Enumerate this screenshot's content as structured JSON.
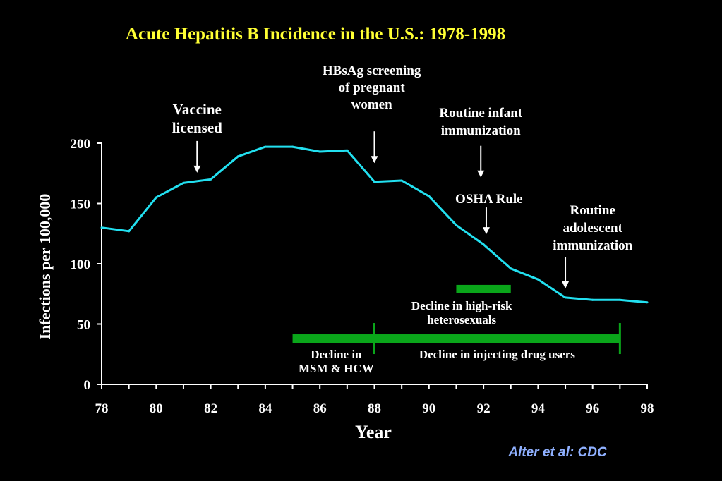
{
  "chart_data": {
    "type": "line",
    "title": "Acute Hepatitis B Incidence in the U.S.: 1978-1998",
    "xlabel": "Year",
    "ylabel": "Infections per 100,000",
    "xlim": [
      78,
      98
    ],
    "ylim": [
      0,
      200
    ],
    "x_ticks": [
      "78",
      "80",
      "82",
      "84",
      "86",
      "88",
      "90",
      "92",
      "94",
      "96",
      "98"
    ],
    "y_ticks": [
      "0",
      "50",
      "100",
      "150",
      "200"
    ],
    "grid": false,
    "legend": "none",
    "line_color": "#22e0f0",
    "series": [
      {
        "x": [
          78,
          79,
          80,
          81,
          82,
          83,
          84,
          85,
          86,
          87,
          88,
          89,
          90,
          91,
          92,
          93,
          94,
          95,
          96,
          97,
          98
        ],
        "values": [
          130,
          127,
          155,
          167,
          170,
          189,
          197,
          197,
          193,
          194,
          168,
          169,
          156,
          132,
          116,
          96,
          87,
          72,
          70,
          70,
          68
        ]
      }
    ],
    "annotations": [
      {
        "id": "vaccine",
        "lines": [
          "Vaccine",
          "licensed"
        ],
        "arrow_x": 81.5,
        "arrow_y": 172
      },
      {
        "id": "hbsag",
        "lines": [
          "HBsAg  screening",
          "of pregnant",
          "women"
        ],
        "arrow_x": 88,
        "arrow_y": 180
      },
      {
        "id": "infant",
        "lines": [
          "Routine infant",
          "immunization"
        ],
        "arrow_x": 91.9,
        "arrow_y": 168
      },
      {
        "id": "osha",
        "lines": [
          "OSHA Rule"
        ],
        "arrow_x": 92.1,
        "arrow_y": 121
      },
      {
        "id": "adolescent",
        "lines": [
          "Routine",
          "adolescent",
          "immunization"
        ],
        "arrow_x": 95,
        "arrow_y": 76
      }
    ],
    "bars": [
      {
        "id": "heterosexual",
        "label_lines": [
          "Decline in high-risk",
          "heterosexuals"
        ],
        "x_start": 91,
        "x_end": 93,
        "y": 79,
        "color": "#0aa61a"
      },
      {
        "id": "msm",
        "label_lines": [
          "Decline in",
          "MSM & HCW"
        ],
        "x_start": 85,
        "x_end": 88,
        "y": 38,
        "color": "#0aa61a"
      },
      {
        "id": "idu",
        "label_lines": [
          "Decline in injecting drug users"
        ],
        "x_start": 88,
        "x_end": 97,
        "y": 38,
        "color": "#0aa61a"
      }
    ],
    "source": "Alter et al: CDC",
    "colors": {
      "title": "#ffff33",
      "text": "#ffffff",
      "source": "#8fb0ff"
    }
  }
}
